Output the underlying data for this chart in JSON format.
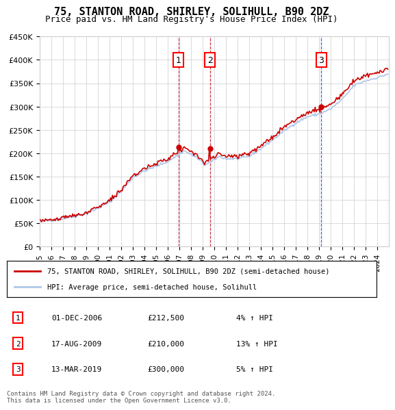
{
  "title": "75, STANTON ROAD, SHIRLEY, SOLIHULL, B90 2DZ",
  "subtitle": "Price paid vs. HM Land Registry's House Price Index (HPI)",
  "ylim": [
    0,
    450000
  ],
  "yticks": [
    0,
    50000,
    100000,
    150000,
    200000,
    250000,
    300000,
    350000,
    400000,
    450000
  ],
  "ytick_labels": [
    "£0",
    "£50K",
    "£100K",
    "£150K",
    "£200K",
    "£250K",
    "£300K",
    "£350K",
    "£400K",
    "£450K"
  ],
  "hpi_color": "#aec6e8",
  "price_color": "#cc0000",
  "background_color": "#e8f0f8",
  "plot_bg_color": "#ffffff",
  "sale_dates": [
    "2006-12-01",
    "2009-08-17",
    "2019-03-13"
  ],
  "sale_prices": [
    212500,
    210000,
    300000
  ],
  "sale_labels": [
    "1",
    "2",
    "3"
  ],
  "legend_line1": "75, STANTON ROAD, SHIRLEY, SOLIHULL, B90 2DZ (semi-detached house)",
  "legend_line2": "HPI: Average price, semi-detached house, Solihull",
  "table_data": [
    [
      "1",
      "01-DEC-2006",
      "£212,500",
      "4% ↑ HPI"
    ],
    [
      "2",
      "17-AUG-2009",
      "£210,000",
      "13% ↑ HPI"
    ],
    [
      "3",
      "13-MAR-2019",
      "£300,000",
      "5% ↑ HPI"
    ]
  ],
  "footer": "Contains HM Land Registry data © Crown copyright and database right 2024.\nThis data is licensed under the Open Government Licence v3.0.",
  "vline_color": "#cc0000",
  "highlight_bg": "#ddeeff"
}
